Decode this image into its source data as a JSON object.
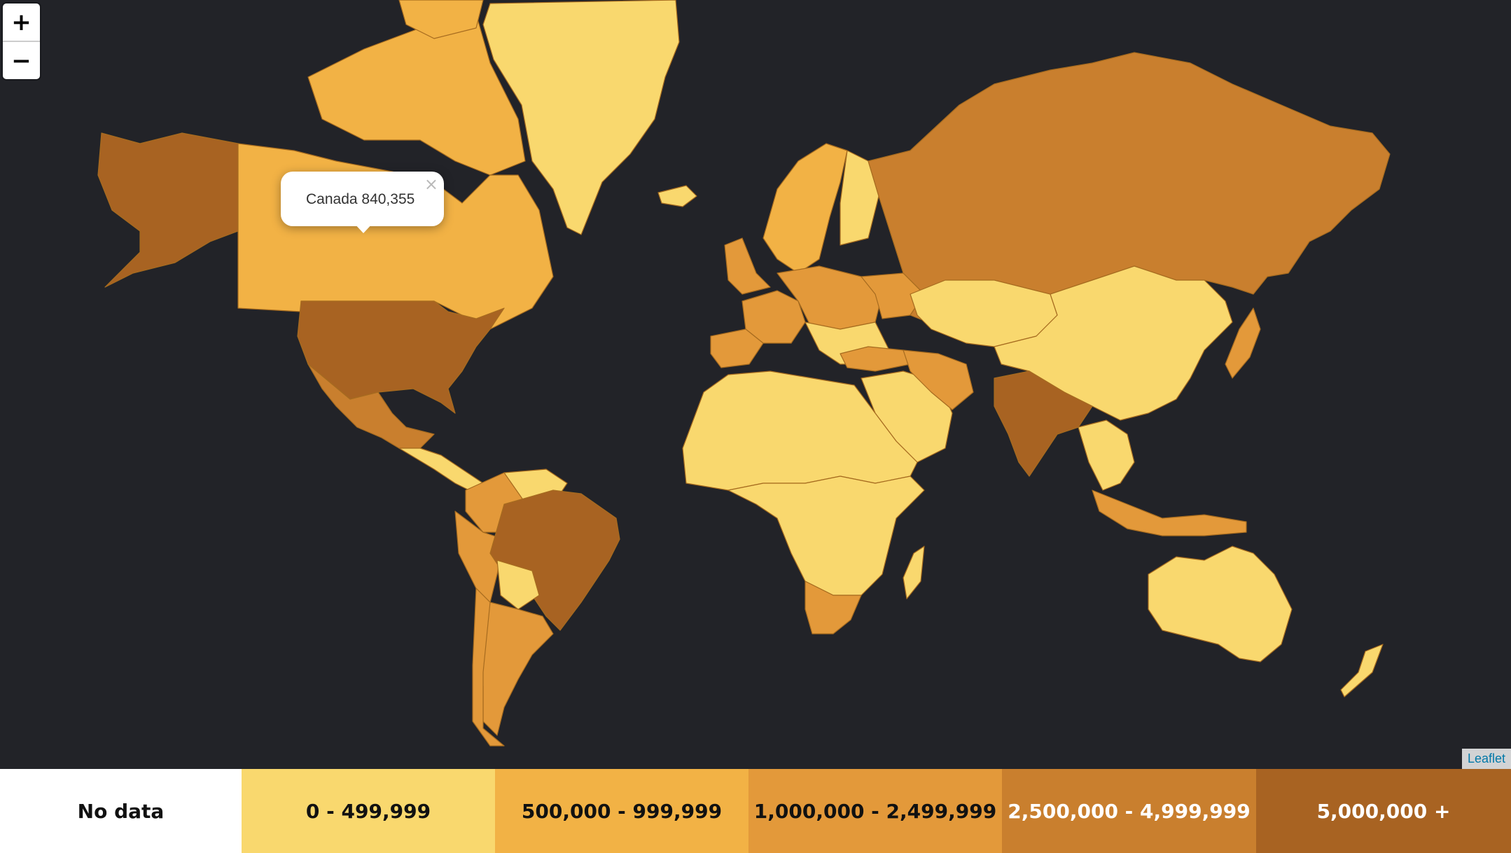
{
  "map": {
    "colors": {
      "background": "#222328",
      "bin_0": "#f9d86e",
      "bin_1": "#f2b245",
      "bin_2": "#e3993a",
      "bin_3": "#c97f2e",
      "bin_4": "#a86322",
      "border": "#a66b1f"
    }
  },
  "controls": {
    "zoom_in_label": "+",
    "zoom_out_label": "−",
    "attribution": "Leaflet"
  },
  "popup": {
    "text": "Canada 840,355",
    "close_label": "×"
  },
  "legend": {
    "items": [
      {
        "label": "No data",
        "bg": "#ffffff",
        "fg": "#111111"
      },
      {
        "label": "0 - 499,999",
        "bg": "#f9d86e",
        "fg": "#111111"
      },
      {
        "label": "500,000 - 999,999",
        "bg": "#f2b245",
        "fg": "#111111"
      },
      {
        "label": "1,000,000 - 2,499,999",
        "bg": "#e3993a",
        "fg": "#111111"
      },
      {
        "label": "2,500,000 - 4,999,999",
        "bg": "#c97f2e",
        "fg": "#ffffff"
      },
      {
        "label": "5,000,000 +",
        "bg": "#a86322",
        "fg": "#ffffff"
      }
    ]
  }
}
